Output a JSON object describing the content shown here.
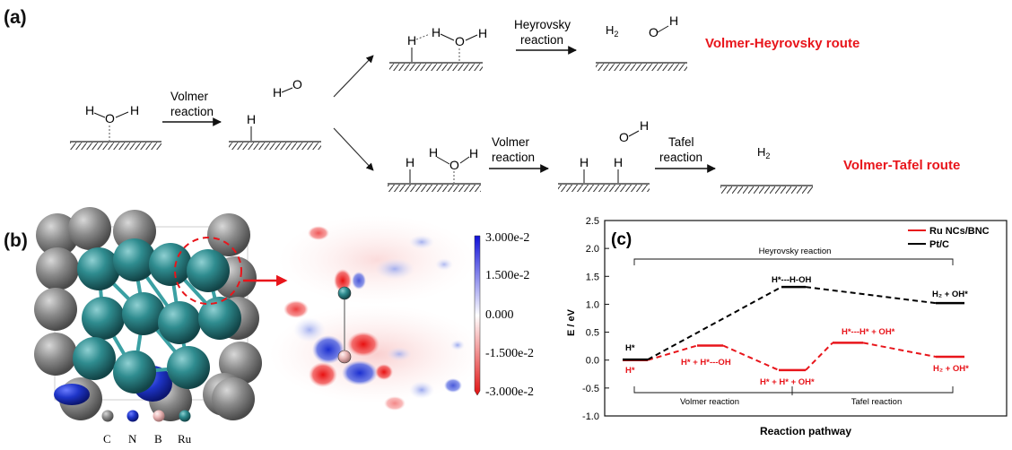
{
  "panel_a": {
    "label": "(a)",
    "volmer_step": {
      "line1": "Volmer",
      "line2": "reaction"
    },
    "heyrovsky_step": {
      "line1": "Heyrovsky",
      "line2": "reaction"
    },
    "volmer_step_2": {
      "line1": "Volmer",
      "line2": "reaction"
    },
    "tafel_step": {
      "line1": "Tafel",
      "line2": "reaction"
    },
    "route_heyrovsky": "Volmer-Heyrovsky route",
    "route_tafel": "Volmer-Tafel route",
    "atom_H": "H",
    "atom_O": "O",
    "h2_label": "H",
    "h2_sub": "2"
  },
  "panel_b": {
    "label": "(b)",
    "colorbar_ticks": [
      "3.000e-2",
      "1.500e-2",
      "0.000",
      "-1.500e-2",
      "-3.000e-2"
    ],
    "legend": [
      "C",
      "N",
      "B",
      "Ru"
    ],
    "colors": {
      "C": "#8a8a8a",
      "N": "#1e35c8",
      "B": "#e8b4b4",
      "Ru": "#2f8c8f"
    }
  },
  "panel_c": {
    "label": "(c)",
    "chart_data": {
      "type": "line",
      "xlabel": "Reaction pathway",
      "ylabel": "E / eV",
      "ylim": [
        -1.0,
        2.5
      ],
      "yticks": [
        -1.0,
        -0.5,
        0.0,
        0.5,
        1.0,
        1.5,
        2.0,
        2.5
      ],
      "legend_position": "top-right",
      "series": [
        {
          "name": "Ru NCs/BNC",
          "color": "#e8151b",
          "levels": [
            0.0,
            0.26,
            -0.18,
            0.31,
            0.06
          ],
          "level_labels": [
            "H*",
            "H* + H*---OH",
            "H* + H* + OH*",
            "H*---H* + OH*",
            "H₂ + OH*"
          ]
        },
        {
          "name": "Pt/C",
          "color": "#000000",
          "levels": [
            0.01,
            1.31,
            1.02
          ],
          "level_labels": [
            "H*",
            "H*---H-OH",
            "H₂ + OH*"
          ]
        }
      ],
      "annotations": {
        "top_bracket": "Heyrovsky reaction",
        "bottom_left": "Volmer reaction",
        "bottom_right": "Tafel reaction"
      }
    }
  }
}
